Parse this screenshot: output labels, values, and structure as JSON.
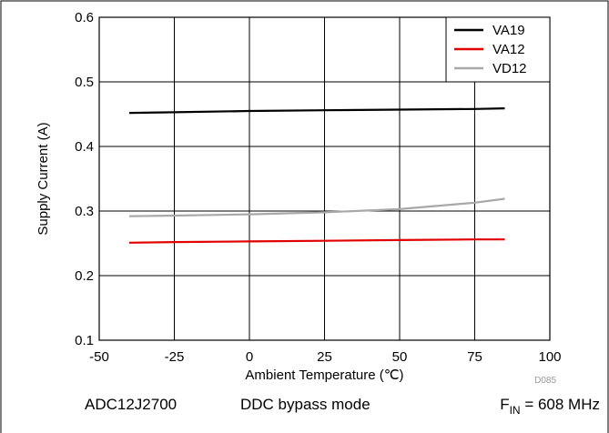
{
  "chart_data": {
    "type": "line",
    "xlabel": "Ambient Temperature (℃)",
    "ylabel": "Supply Current (A)",
    "xlim": [
      -50,
      100
    ],
    "ylim": [
      0.1,
      0.6
    ],
    "xticks": [
      -50,
      -25,
      0,
      25,
      50,
      75,
      100
    ],
    "yticks": [
      0.1,
      0.2,
      0.3,
      0.4,
      0.5,
      0.6
    ],
    "xtick_labels": [
      "-50",
      "-25",
      "0",
      "25",
      "50",
      "75",
      "100"
    ],
    "ytick_labels": [
      "0.1",
      "0.2",
      "0.3",
      "0.4",
      "0.5",
      "0.6"
    ],
    "grid": true,
    "legend_position": "top-right",
    "series": [
      {
        "name": "VA19",
        "color": "#000000",
        "x": [
          -40,
          -25,
          0,
          25,
          50,
          75,
          85
        ],
        "y": [
          0.452,
          0.453,
          0.455,
          0.456,
          0.457,
          0.458,
          0.459
        ]
      },
      {
        "name": "VA12",
        "color": "#e00000",
        "x": [
          -40,
          -25,
          0,
          25,
          50,
          75,
          85
        ],
        "y": [
          0.251,
          0.252,
          0.253,
          0.254,
          0.255,
          0.256,
          0.256
        ]
      },
      {
        "name": "VD12",
        "color": "#a8a8a8",
        "x": [
          -40,
          -25,
          0,
          25,
          50,
          75,
          85
        ],
        "y": [
          0.292,
          0.293,
          0.295,
          0.298,
          0.303,
          0.313,
          0.319
        ]
      }
    ],
    "code_label": "D085"
  },
  "caption": {
    "device": "ADC12J2700",
    "mode": "DDC bypass mode",
    "fin_prefix": "F",
    "fin_subscript": "IN",
    "fin_value": " = 608 MHz"
  }
}
